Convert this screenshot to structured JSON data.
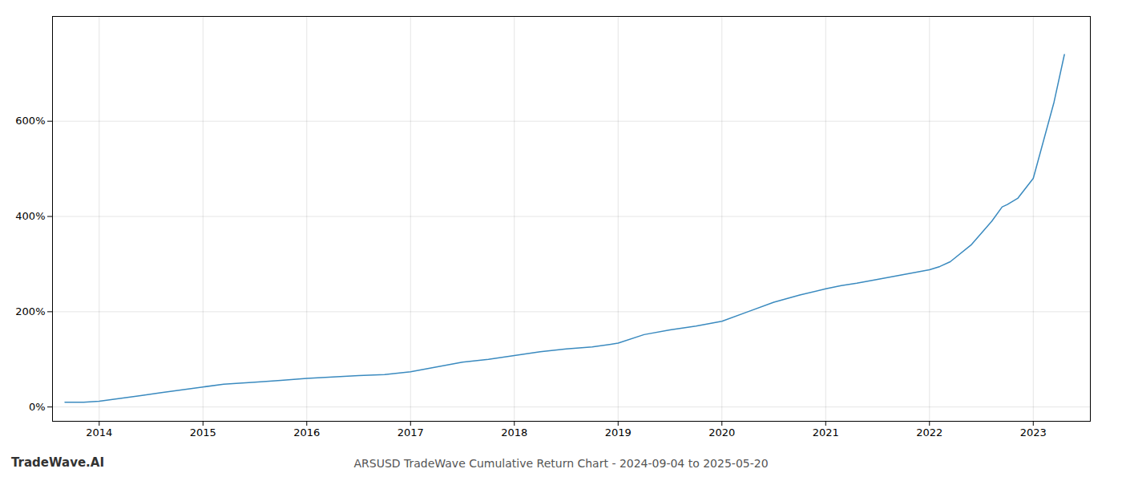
{
  "chart_data": {
    "type": "line",
    "title": "ARSUSD TradeWave Cumulative Return Chart - 2024-09-04 to 2025-05-20",
    "annotations": [
      "TradeWave.AI"
    ],
    "color": "#3a8abf",
    "grid": true,
    "xlim": [
      2013.55,
      2023.55
    ],
    "ylim": [
      -30,
      820
    ],
    "xticks": [
      2014,
      2015,
      2016,
      2017,
      2018,
      2019,
      2020,
      2021,
      2022,
      2023
    ],
    "yticks": [
      {
        "value": 0,
        "label": "0%"
      },
      {
        "value": 200,
        "label": "200%"
      },
      {
        "value": 400,
        "label": "400%"
      },
      {
        "value": 600,
        "label": "600%"
      }
    ],
    "x": [
      2013.67,
      2013.85,
      2014.0,
      2014.2,
      2014.4,
      2014.6,
      2014.8,
      2015.0,
      2015.2,
      2015.5,
      2015.75,
      2016.0,
      2016.25,
      2016.5,
      2016.75,
      2017.0,
      2017.25,
      2017.5,
      2017.75,
      2018.0,
      2018.25,
      2018.5,
      2018.75,
      2019.0,
      2019.25,
      2019.5,
      2019.75,
      2020.0,
      2020.25,
      2020.5,
      2020.75,
      2021.0,
      2021.15,
      2021.3,
      2021.5,
      2021.75,
      2022.0,
      2022.1,
      2022.2,
      2022.4,
      2022.6,
      2022.7,
      2022.75,
      2022.85,
      2023.0,
      2023.1,
      2023.2,
      2023.3
    ],
    "values": [
      10,
      10,
      12,
      18,
      24,
      30,
      36,
      42,
      48,
      52,
      56,
      60,
      63,
      66,
      68,
      74,
      84,
      94,
      100,
      108,
      116,
      122,
      126,
      134,
      152,
      162,
      170,
      180,
      200,
      220,
      235,
      248,
      255,
      260,
      268,
      278,
      288,
      295,
      305,
      340,
      390,
      420,
      425,
      438,
      480,
      560,
      640,
      740
    ]
  }
}
